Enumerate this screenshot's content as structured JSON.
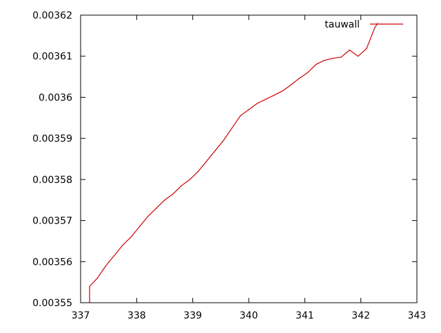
{
  "chart_data": {
    "type": "line",
    "title": "",
    "xlabel": "",
    "ylabel": "",
    "xlim": [
      337,
      343
    ],
    "ylim": [
      0.00355,
      0.00362
    ],
    "x_ticks": [
      337,
      338,
      339,
      340,
      341,
      342,
      343
    ],
    "x_tick_labels": [
      "337",
      "338",
      "339",
      "340",
      "341",
      "342",
      "343"
    ],
    "y_ticks": [
      0.00355,
      0.00356,
      0.00357,
      0.00358,
      0.00359,
      0.0036,
      0.00361,
      0.00362
    ],
    "y_tick_labels": [
      "0.00355",
      "0.00356",
      "0.00357",
      "0.00358",
      "0.00359",
      "0.0036",
      "0.00361",
      "0.00362"
    ],
    "grid": false,
    "legend_position": "top-right",
    "series": [
      {
        "name": "tauwall",
        "color": "#cc0000",
        "x": [
          337.16,
          337.16,
          337.3,
          337.45,
          337.6,
          337.75,
          337.9,
          338.05,
          338.2,
          338.35,
          338.5,
          338.65,
          338.8,
          338.95,
          339.1,
          339.25,
          339.4,
          339.55,
          339.7,
          339.85,
          340.0,
          340.15,
          340.3,
          340.45,
          340.6,
          340.75,
          340.9,
          341.05,
          341.2,
          341.35,
          341.5,
          341.65,
          341.8,
          341.95,
          342.1,
          342.25,
          342.3
        ],
        "y": [
          0.00355,
          0.003554,
          0.003556,
          0.003559,
          0.0035615,
          0.003564,
          0.003566,
          0.0035685,
          0.003571,
          0.003573,
          0.003575,
          0.0035765,
          0.0035785,
          0.00358,
          0.003582,
          0.0035845,
          0.003587,
          0.0035895,
          0.0035925,
          0.0035955,
          0.003597,
          0.0035985,
          0.0035995,
          0.0036005,
          0.0036015,
          0.003603,
          0.0036046,
          0.003606,
          0.003608,
          0.003609,
          0.0036095,
          0.0036098,
          0.0036115,
          0.00361,
          0.0036118,
          0.003617,
          0.003618
        ]
      }
    ]
  }
}
